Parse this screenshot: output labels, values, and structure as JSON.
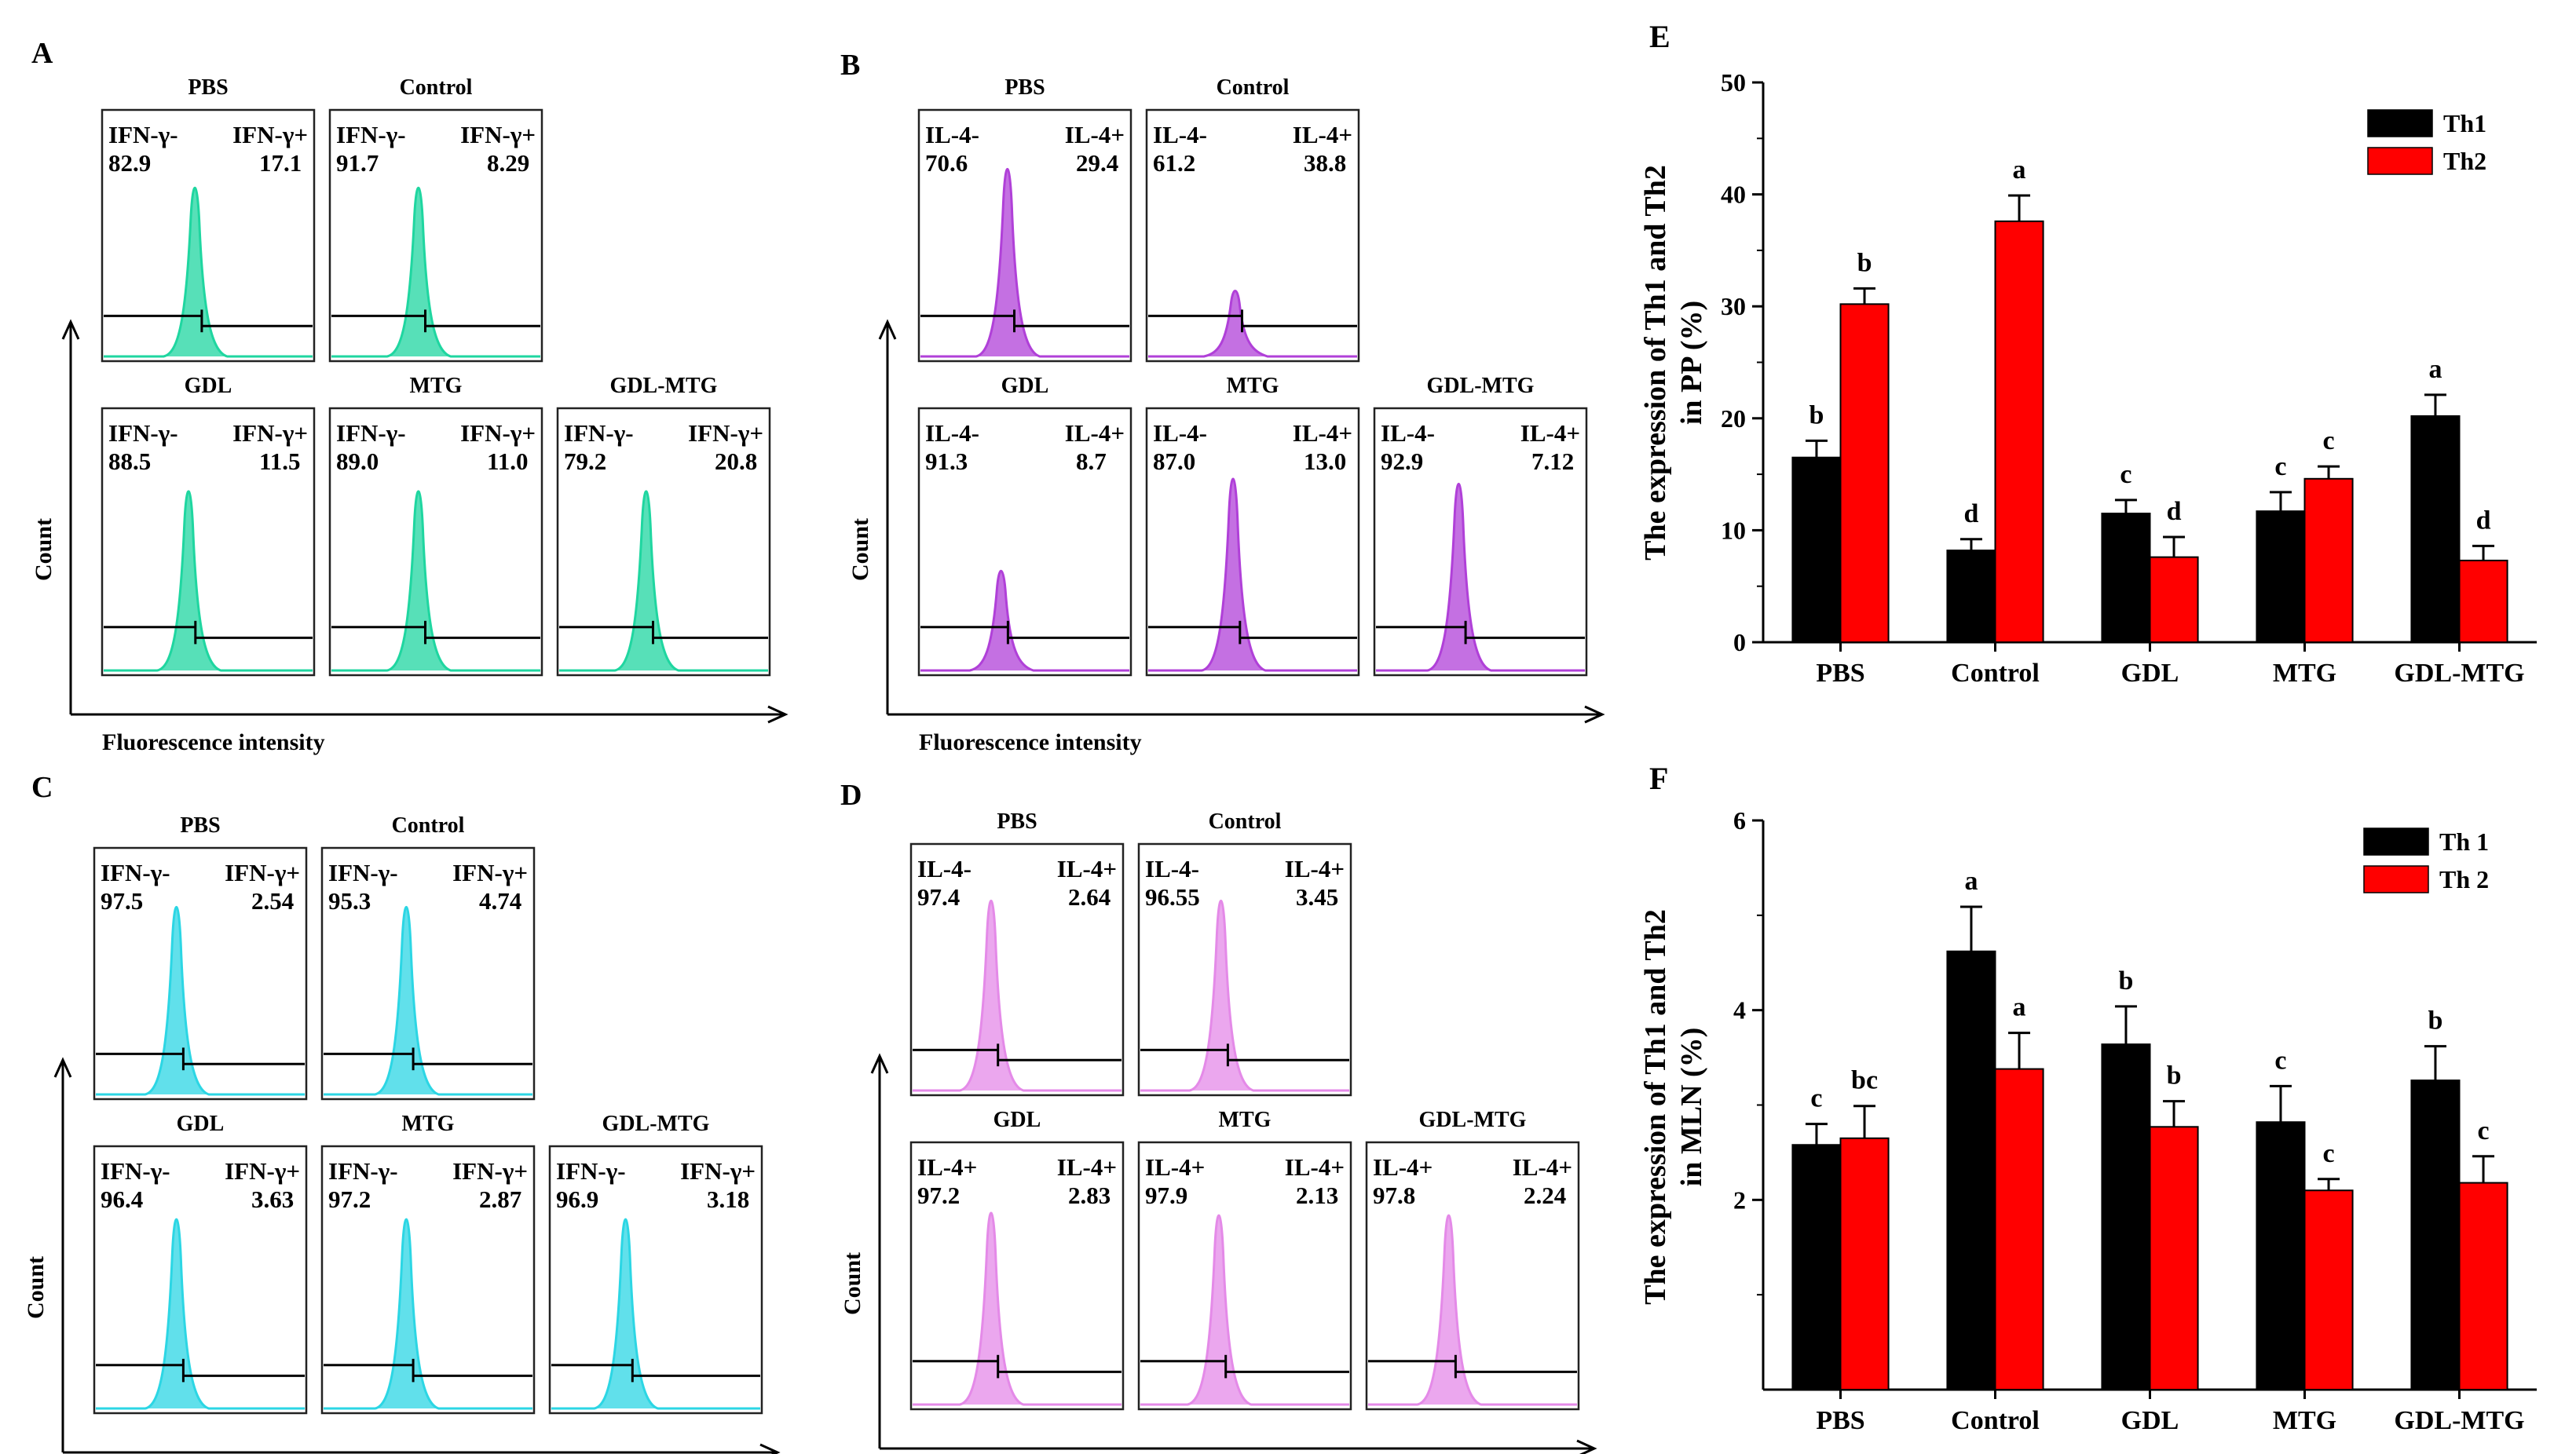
{
  "figure": {
    "flow_panels": [
      {
        "letter": "A",
        "axis_x": "Fluorescence intensity",
        "axis_y": "Count",
        "color": "#1fd6a0",
        "samples": [
          {
            "title": "PBS",
            "neg_label": "IFN-γ-",
            "pos_label": "IFN-γ+",
            "neg_value": "82.9",
            "pos_value": "17.1"
          },
          {
            "title": "Control",
            "neg_label": "IFN-γ-",
            "pos_label": "IFN-γ+",
            "neg_value": "91.7",
            "pos_value": "8.29"
          },
          {
            "title": "GDL",
            "neg_label": "IFN-γ-",
            "pos_label": "IFN-γ+",
            "neg_value": "88.5",
            "pos_value": "11.5"
          },
          {
            "title": "MTG",
            "neg_label": "IFN-γ-",
            "pos_label": "IFN-γ+",
            "neg_value": "89.0",
            "pos_value": "11.0"
          },
          {
            "title": "GDL-MTG",
            "neg_label": "IFN-γ-",
            "pos_label": "IFN-γ+",
            "neg_value": "79.2",
            "pos_value": "20.8"
          }
        ]
      },
      {
        "letter": "B",
        "axis_x": "Fluorescence intensity",
        "axis_y": "Count",
        "color": "#b040d8",
        "samples": [
          {
            "title": "PBS",
            "neg_label": "IL-4-",
            "pos_label": "IL-4+",
            "neg_value": "70.6",
            "pos_value": "29.4"
          },
          {
            "title": "Control",
            "neg_label": "IL-4-",
            "pos_label": "IL-4+",
            "neg_value": "61.2",
            "pos_value": "38.8"
          },
          {
            "title": "GDL",
            "neg_label": "IL-4-",
            "pos_label": "IL-4+",
            "neg_value": "91.3",
            "pos_value": "8.7"
          },
          {
            "title": "MTG",
            "neg_label": "IL-4-",
            "pos_label": "IL-4+",
            "neg_value": "87.0",
            "pos_value": "13.0"
          },
          {
            "title": "GDL-MTG",
            "neg_label": "IL-4-",
            "pos_label": "IL-4+",
            "neg_value": "92.9",
            "pos_value": "7.12"
          }
        ]
      },
      {
        "letter": "C",
        "axis_x": "Fluorescence intensity",
        "axis_y": "Count",
        "color": "#2cd6e4",
        "samples": [
          {
            "title": "PBS",
            "neg_label": "IFN-γ-",
            "pos_label": "IFN-γ+",
            "neg_value": "97.5",
            "pos_value": "2.54"
          },
          {
            "title": "Control",
            "neg_label": "IFN-γ-",
            "pos_label": "IFN-γ+",
            "neg_value": "95.3",
            "pos_value": "4.74"
          },
          {
            "title": "GDL",
            "neg_label": "IFN-γ-",
            "pos_label": "IFN-γ+",
            "neg_value": "96.4",
            "pos_value": "3.63"
          },
          {
            "title": "MTG",
            "neg_label": "IFN-γ-",
            "pos_label": "IFN-γ+",
            "neg_value": "97.2",
            "pos_value": "2.87"
          },
          {
            "title": "GDL-MTG",
            "neg_label": "IFN-γ-",
            "pos_label": "IFN-γ+",
            "neg_value": "96.9",
            "pos_value": "3.18"
          }
        ]
      },
      {
        "letter": "D",
        "axis_x": "Fluorescence intensity",
        "axis_y": "Count",
        "color": "#e48ae8",
        "samples": [
          {
            "title": "PBS",
            "neg_label": "IL-4-",
            "pos_label": "IL-4+",
            "neg_value": "97.4",
            "pos_value": "2.64"
          },
          {
            "title": "Control",
            "neg_label": "IL-4-",
            "pos_label": "IL-4+",
            "neg_value": "96.55",
            "pos_value": "3.45"
          },
          {
            "title": "GDL",
            "neg_label": "IL-4+",
            "pos_label": "IL-4+",
            "neg_value": "97.2",
            "pos_value": "2.83"
          },
          {
            "title": "MTG",
            "neg_label": "IL-4+",
            "pos_label": "IL-4+",
            "neg_value": "97.9",
            "pos_value": "2.13"
          },
          {
            "title": "GDL-MTG",
            "neg_label": "IL-4+",
            "pos_label": "IL-4+",
            "neg_value": "97.8",
            "pos_value": "2.24"
          }
        ]
      }
    ]
  },
  "chart_data": [
    {
      "panel": "E",
      "type": "bar",
      "title": "",
      "xlabel": "",
      "ylabel": "The expression of Th1 and Th2 in PP (%)",
      "ylabel_lines": [
        "The expression of Th1 and Th2",
        "in PP (%)"
      ],
      "ylim": [
        0,
        50
      ],
      "yticks": [
        0,
        10,
        20,
        30,
        40,
        50
      ],
      "categories": [
        "PBS",
        "Control",
        "GDL",
        "MTG",
        "GDL-MTG"
      ],
      "legend_position": "top-right",
      "series": [
        {
          "name": "Th1",
          "color": "#000000",
          "values": [
            16.5,
            8.2,
            11.5,
            11.7,
            20.2
          ],
          "errors": [
            1.5,
            1.0,
            1.2,
            1.7,
            1.9
          ],
          "letters": [
            "b",
            "d",
            "c",
            "c",
            "a"
          ]
        },
        {
          "name": "Th2",
          "color": "#ff0000",
          "values": [
            30.2,
            37.6,
            7.6,
            14.6,
            7.3
          ],
          "errors": [
            1.4,
            2.3,
            1.8,
            1.1,
            1.3
          ],
          "letters": [
            "b",
            "a",
            "d",
            "c",
            "d"
          ]
        }
      ]
    },
    {
      "panel": "F",
      "type": "bar",
      "title": "",
      "xlabel": "",
      "ylabel": "The expression of Th1 and Th2 in MLN (%)",
      "ylabel_lines": [
        "The expression of Th1 and Th2",
        "in MLN (%)"
      ],
      "ylim": [
        0,
        6
      ],
      "yticks": [
        2,
        4,
        6
      ],
      "categories": [
        "PBS",
        "Control",
        "GDL",
        "MTG",
        "GDL-MTG"
      ],
      "legend_position": "top-right",
      "series": [
        {
          "name": "Th 1",
          "color": "#000000",
          "values": [
            2.58,
            4.62,
            3.64,
            2.82,
            3.26
          ],
          "errors": [
            0.22,
            0.47,
            0.4,
            0.38,
            0.36
          ],
          "letters": [
            "c",
            "a",
            "b",
            "c",
            "b"
          ]
        },
        {
          "name": "Th 2",
          "color": "#ff0000",
          "values": [
            2.65,
            3.38,
            2.77,
            2.1,
            2.18
          ],
          "errors": [
            0.34,
            0.38,
            0.27,
            0.12,
            0.28
          ],
          "letters": [
            "bc",
            "a",
            "b",
            "c",
            "c"
          ]
        }
      ]
    }
  ]
}
